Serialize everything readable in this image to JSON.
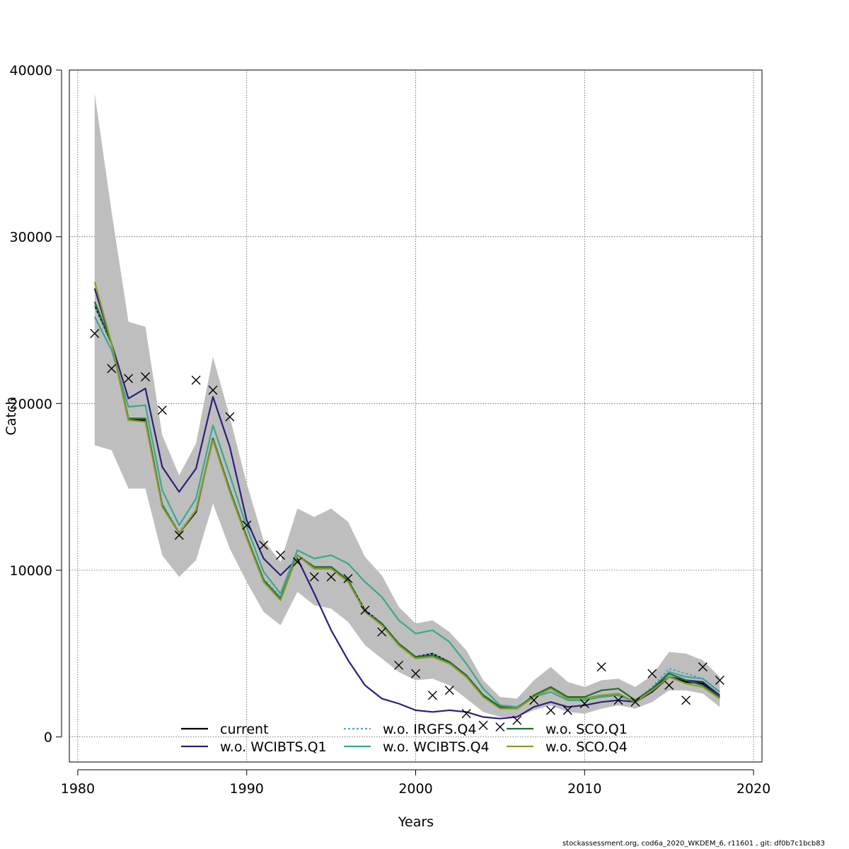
{
  "chart_data": {
    "type": "line",
    "xlabel": "Years",
    "ylabel": "Catch",
    "xlim": [
      1979.5,
      2020.5
    ],
    "ylim": [
      -1500,
      40000
    ],
    "x_ticks": [
      1980,
      1990,
      2000,
      2010,
      2020
    ],
    "y_ticks": [
      0,
      10000,
      20000,
      30000,
      40000
    ],
    "x_tick_labels": [
      "1980",
      "1990",
      "2000",
      "2010",
      "2020"
    ],
    "y_tick_labels": [
      "0",
      "10000",
      "20000",
      "30000",
      "40000"
    ],
    "grid": true,
    "legend_position": "bottom",
    "x": [
      1981,
      1982,
      1983,
      1984,
      1985,
      1986,
      1987,
      1988,
      1989,
      1990,
      1991,
      1992,
      1993,
      1994,
      1995,
      1996,
      1997,
      1998,
      1999,
      2000,
      2001,
      2002,
      2003,
      2004,
      2005,
      2006,
      2007,
      2008,
      2009,
      2010,
      2011,
      2012,
      2013,
      2014,
      2015,
      2016,
      2017,
      2018
    ],
    "band": {
      "upper": [
        38600,
        31500,
        24900,
        24600,
        18100,
        15700,
        17600,
        22800,
        19200,
        15200,
        11800,
        10500,
        13700,
        13200,
        13700,
        12900,
        10800,
        9700,
        7800,
        6800,
        7000,
        6300,
        5200,
        3400,
        2400,
        2300,
        3400,
        4200,
        3300,
        3000,
        3400,
        3500,
        3000,
        3700,
        5100,
        5000,
        4600,
        3600
      ],
      "lower": [
        17500,
        17200,
        14900,
        14900,
        10900,
        9600,
        10600,
        14000,
        11300,
        9300,
        7500,
        6700,
        8700,
        7900,
        7700,
        6900,
        5500,
        4700,
        3900,
        3400,
        3500,
        3100,
        2300,
        1500,
        1200,
        1200,
        1600,
        1900,
        1500,
        1400,
        1700,
        1900,
        1700,
        2100,
        2800,
        2800,
        2600,
        1800
      ]
    },
    "observations": {
      "name": "observed catch",
      "values": [
        24200,
        22100,
        21500,
        21600,
        19600,
        12100,
        21400,
        20800,
        19200,
        12700,
        11500,
        10900,
        10500,
        9600,
        9600,
        9500,
        7600,
        6300,
        4300,
        3800,
        2500,
        2800,
        1400,
        700,
        600,
        1000,
        2200,
        1600,
        1600,
        2000,
        4200,
        2200,
        2100,
        3800,
        3100,
        2200,
        4200,
        3400
      ]
    },
    "series": [
      {
        "name": "current",
        "color": "#000000",
        "dash": "solid",
        "values": [
          25900,
          23600,
          19000,
          19000,
          13900,
          12200,
          13500,
          17900,
          14800,
          12000,
          9400,
          8300,
          10900,
          10100,
          10100,
          9400,
          7600,
          6800,
          5600,
          4800,
          5000,
          4500,
          3700,
          2500,
          1800,
          1700,
          2400,
          2900,
          2300,
          2300,
          2500,
          2500,
          2100,
          2900,
          3600,
          3300,
          3200,
          2400
        ]
      },
      {
        "name": "w.o. WCIBTS.Q1",
        "color": "#2e1f7c",
        "dash": "solid",
        "values": [
          26900,
          23600,
          20300,
          20900,
          16200,
          14700,
          16100,
          20400,
          17400,
          13000,
          10700,
          9700,
          10700,
          8600,
          6400,
          4600,
          3100,
          2300,
          2000,
          1600,
          1500,
          1600,
          1500,
          1200,
          1100,
          1200,
          1800,
          2100,
          1800,
          1900,
          2100,
          2200,
          2100,
          2700,
          3600,
          3400,
          3300,
          2500
        ]
      },
      {
        "name": "w.o. IRGFS.Q4",
        "color": "#4fa3d1",
        "dash": "dotted",
        "values": [
          25900,
          23600,
          19100,
          19100,
          14000,
          12300,
          13600,
          17900,
          14900,
          12000,
          9500,
          8400,
          10900,
          10200,
          10200,
          9400,
          7600,
          6800,
          5600,
          4800,
          5000,
          4500,
          3700,
          2500,
          1800,
          1700,
          2500,
          2900,
          2300,
          2300,
          2500,
          2500,
          2100,
          3000,
          4100,
          3800,
          3500,
          2700
        ]
      },
      {
        "name": "w.o. WCIBTS.Q4",
        "color": "#3aa88f",
        "dash": "solid",
        "values": [
          25200,
          23200,
          19800,
          19900,
          14800,
          12700,
          14300,
          18700,
          15700,
          12600,
          9900,
          8600,
          11200,
          10700,
          10900,
          10400,
          9300,
          8400,
          7000,
          6200,
          6400,
          5700,
          4400,
          2900,
          1900,
          1800,
          2400,
          2700,
          2200,
          2200,
          2400,
          2500,
          2100,
          2900,
          3900,
          3600,
          3500,
          2700
        ]
      },
      {
        "name": "w.o. SCO.Q1",
        "color": "#1b6f2c",
        "dash": "solid",
        "values": [
          26100,
          23600,
          19100,
          19100,
          13900,
          12200,
          13600,
          17900,
          14800,
          12000,
          9400,
          8300,
          10900,
          10200,
          10200,
          9400,
          7500,
          6800,
          5600,
          4800,
          4900,
          4500,
          3700,
          2500,
          1800,
          1700,
          2500,
          3000,
          2400,
          2400,
          2800,
          2900,
          2200,
          2900,
          3800,
          3400,
          3100,
          2400
        ]
      },
      {
        "name": "w.o. SCO.Q4",
        "color": "#8f9a2c",
        "dash": "solid",
        "values": [
          27300,
          23600,
          19000,
          18900,
          13800,
          12200,
          13600,
          17800,
          14700,
          11900,
          9300,
          8200,
          10900,
          10100,
          10100,
          9300,
          7500,
          6700,
          5500,
          4700,
          4800,
          4400,
          3600,
          2400,
          1700,
          1700,
          2400,
          2900,
          2300,
          2300,
          2500,
          2600,
          2100,
          2800,
          3600,
          3200,
          3000,
          2300
        ]
      }
    ],
    "legend": [
      {
        "label": "current",
        "color": "#000000",
        "dash": "solid"
      },
      {
        "label": "w.o. WCIBTS.Q1",
        "color": "#2e1f7c",
        "dash": "solid"
      },
      {
        "label": "w.o. IRGFS.Q4",
        "color": "#4fa3d1",
        "dash": "dotted"
      },
      {
        "label": "w.o. WCIBTS.Q4",
        "color": "#3aa88f",
        "dash": "solid"
      },
      {
        "label": "w.o. SCO.Q1",
        "color": "#1b6f2c",
        "dash": "solid"
      },
      {
        "label": "w.o. SCO.Q4",
        "color": "#8f9a2c",
        "dash": "solid"
      }
    ],
    "band_color": "#bebebe"
  },
  "footer": "stockassessment.org, cod6a_2020_WKDEM_6, r11601 , git: df0b7c1bcb83"
}
